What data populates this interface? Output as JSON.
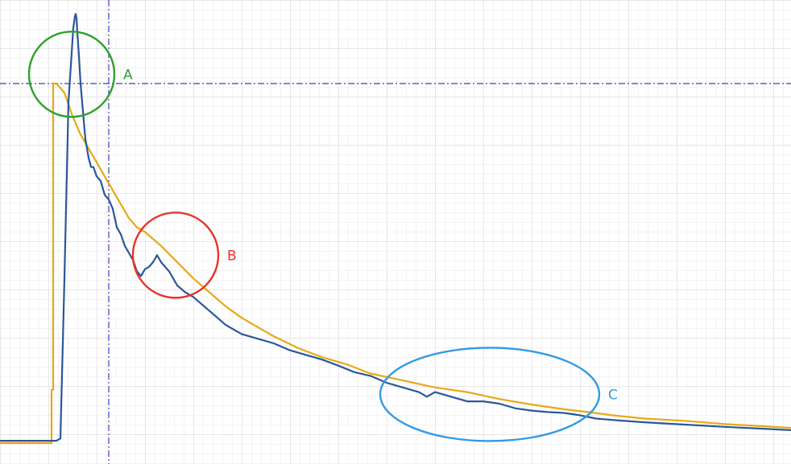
{
  "chart_data": {
    "type": "line",
    "title": "",
    "xlabel": "",
    "ylabel": "",
    "grid": true,
    "legend": "none",
    "xlim": [
      0,
      982
    ],
    "ylim": [
      0,
      100
    ],
    "series": [
      {
        "color": "#e8a817",
        "x": [
          0,
          64,
          64,
          66,
          66,
          70,
          80,
          90,
          100,
          110,
          120,
          130,
          140,
          150,
          160,
          170,
          180,
          190,
          200,
          220,
          240,
          260,
          280,
          300,
          320,
          340,
          370,
          400,
          430,
          460,
          500,
          540,
          580,
          620,
          660,
          700,
          730,
          760,
          800,
          850,
          900,
          982
        ],
        "y": [
          4.5,
          4.5,
          16,
          16,
          82,
          82,
          80,
          75,
          71,
          68,
          65,
          62,
          59,
          56,
          53,
          51,
          50,
          48.5,
          47,
          43.5,
          40,
          37,
          34,
          31.5,
          29.5,
          27.5,
          25,
          23,
          21.5,
          19.5,
          18,
          16.5,
          15.5,
          14,
          12.8,
          11.8,
          11.2,
          10.5,
          9.8,
          9.3,
          8.6,
          7.8
        ]
      },
      {
        "color": "#2a579a",
        "x": [
          0,
          70,
          75,
          80,
          85,
          88,
          91,
          93,
          94,
          95,
          96,
          98,
          100,
          103,
          106,
          110,
          113,
          116,
          120,
          125,
          130,
          135,
          140,
          145,
          150,
          155,
          160,
          165,
          170,
          175,
          180,
          185,
          190,
          195,
          200,
          205,
          210,
          215,
          220,
          230,
          240,
          250,
          260,
          270,
          280,
          290,
          300,
          320,
          340,
          360,
          380,
          400,
          420,
          440,
          460,
          480,
          500,
          520,
          530,
          540,
          560,
          580,
          600,
          620,
          640,
          660,
          680,
          700,
          720,
          740,
          760,
          800,
          850,
          900,
          982
        ],
        "y": [
          5,
          5,
          5.5,
          40,
          78,
          86,
          94,
          96.5,
          97,
          96,
          93,
          88,
          82,
          76,
          70,
          66,
          64,
          64,
          62,
          61,
          58,
          57,
          55,
          51,
          49.5,
          47,
          45.5,
          44,
          41.5,
          40.5,
          42,
          42.5,
          43.5,
          45,
          43.5,
          42.5,
          41.5,
          40,
          38.5,
          37,
          36,
          34.5,
          33,
          31.5,
          30,
          29,
          28,
          27,
          26,
          24.5,
          23.5,
          22.5,
          21.2,
          19.8,
          19,
          17.5,
          16.5,
          15.5,
          14.5,
          15.5,
          14.5,
          13.5,
          13.5,
          13,
          12,
          11.5,
          11.2,
          11,
          10.5,
          9.8,
          9.5,
          9,
          8.5,
          8,
          7.3
        ]
      }
    ],
    "reference_lines": [
      {
        "orientation": "horizontal",
        "value": 82,
        "style": "dashdot",
        "color": "#3a3fc4"
      },
      {
        "orientation": "vertical",
        "value": 135,
        "style": "dashdot",
        "color": "#3a3fc4"
      }
    ],
    "annotations": [
      {
        "text": "A",
        "shape": "circle",
        "x": 89,
        "y": 84,
        "color": "#2ca02c"
      },
      {
        "text": "B",
        "shape": "circle",
        "x": 218,
        "y": 45,
        "color": "#e8332a"
      },
      {
        "text": "C",
        "shape": "ellipse",
        "x": 608,
        "y": 15,
        "color": "#2f9be3"
      }
    ]
  }
}
